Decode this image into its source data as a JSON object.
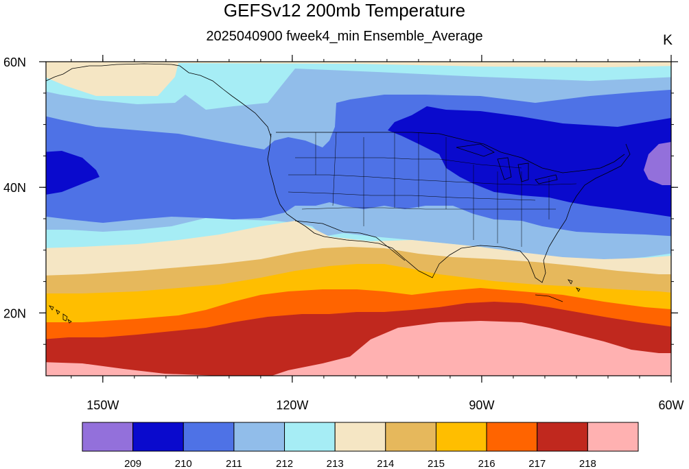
{
  "title": "GEFSv12 200mb Temperature",
  "subtitle": "2025040900 fweek4_min Ensemble_Average",
  "units": "K",
  "lat_ticks": [
    {
      "value": 60,
      "label": "60N"
    },
    {
      "value": 40,
      "label": "40N"
    },
    {
      "value": 20,
      "label": "20N"
    }
  ],
  "lon_ticks": [
    {
      "value": -150,
      "label": "150W"
    },
    {
      "value": -120,
      "label": "120W"
    },
    {
      "value": -90,
      "label": "90W"
    },
    {
      "value": -60,
      "label": "60W"
    }
  ],
  "extent": {
    "lon_min": -159,
    "lon_max": -60,
    "lat_min": 10,
    "lat_max": 60
  },
  "colorbar": {
    "colors": [
      "#9370DB",
      "#0A0ACD",
      "#4E72E6",
      "#91BDEA",
      "#A6EDF5",
      "#F5E6C4",
      "#E6B85C",
      "#FFBE00",
      "#FF6400",
      "#C0281E",
      "#FFB1B1"
    ],
    "labels": [
      "209",
      "210",
      "211",
      "212",
      "213",
      "214",
      "215",
      "216",
      "217",
      "218"
    ]
  }
}
